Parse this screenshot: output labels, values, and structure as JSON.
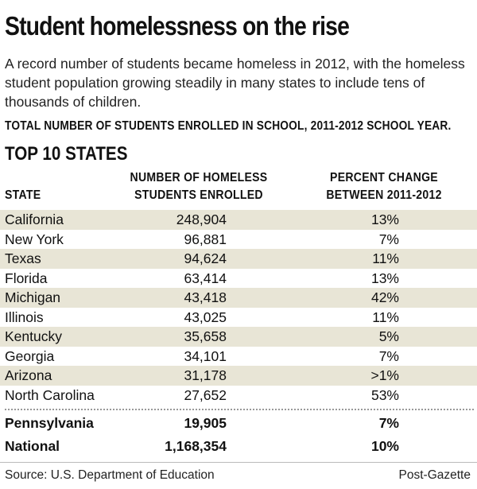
{
  "colors": {
    "row_shade": "#e8e5d6",
    "text": "#111111",
    "divider": "#999999"
  },
  "header": {
    "title": "Student homelessness on the rise",
    "deck": "A record number of students became homeless in 2012, with the homeless student population growing steadily in many states to include tens of thousands of children.",
    "subhead": "TOTAL NUMBER OF STUDENTS ENROLLED IN SCHOOL, 2011-2012 SCHOOL YEAR.",
    "section": "TOP 10 STATES"
  },
  "columns": {
    "state": "STATE",
    "count_line1": "NUMBER OF HOMELESS",
    "count_line2": "STUDENTS ENROLLED",
    "pct_line1": "PERCENT CHANGE",
    "pct_line2": "BETWEEN 2011-2012"
  },
  "chart_data": {
    "type": "table",
    "title": "Student homelessness on the rise",
    "columns": [
      "STATE",
      "NUMBER OF HOMELESS STUDENTS ENROLLED",
      "PERCENT CHANGE BETWEEN 2011-2012"
    ],
    "rows": [
      {
        "state": "California",
        "count": "248,904",
        "pct": "13%"
      },
      {
        "state": "New York",
        "count": "96,881",
        "pct": "7%"
      },
      {
        "state": "Texas",
        "count": "94,624",
        "pct": "11%"
      },
      {
        "state": "Florida",
        "count": "63,414",
        "pct": "13%"
      },
      {
        "state": "Michigan",
        "count": "43,418",
        "pct": "42%"
      },
      {
        "state": "Illinois",
        "count": "43,025",
        "pct": "11%"
      },
      {
        "state": "Kentucky",
        "count": "35,658",
        "pct": "5%"
      },
      {
        "state": "Georgia",
        "count": "34,101",
        "pct": "7%"
      },
      {
        "state": "Arizona",
        "count": "31,178",
        "pct": ">1%"
      },
      {
        "state": "North Carolina",
        "count": "27,652",
        "pct": "53%"
      }
    ],
    "pennsylvania": {
      "state": "Pennsylvania",
      "count": "19,905",
      "pct": "7%"
    },
    "national": {
      "state": "National",
      "count": "1,168,354",
      "pct": "10%"
    }
  },
  "footer": {
    "source": "Source: U.S. Department of Education",
    "credit": "Post-Gazette"
  }
}
